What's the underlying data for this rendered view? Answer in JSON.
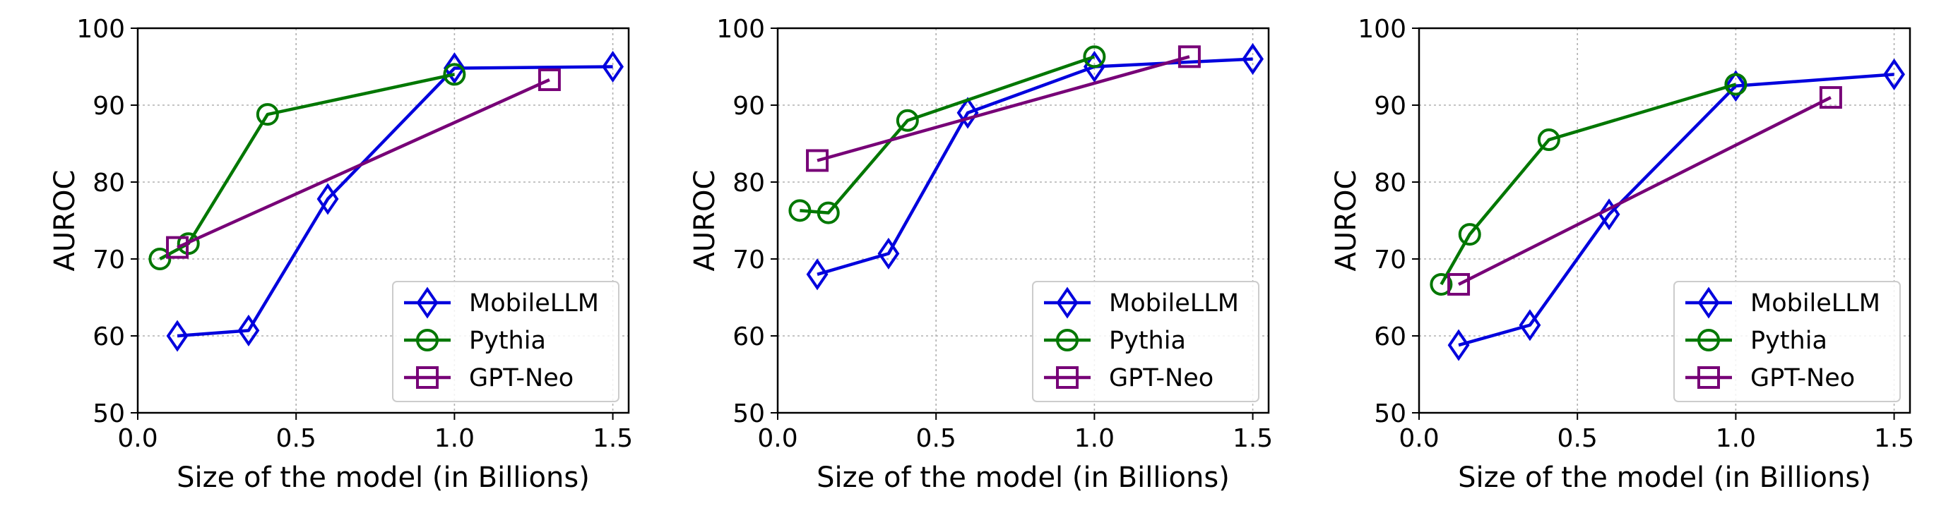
{
  "chart_data": [
    {
      "type": "line",
      "xlabel": "Size of the model (in Billions)",
      "ylabel": "AUROC",
      "xlim": [
        0.0,
        1.55
      ],
      "ylim": [
        50,
        100
      ],
      "xticks": [
        "0.0",
        "0.5",
        "1.0",
        "1.5"
      ],
      "yticks": [
        "50",
        "60",
        "70",
        "80",
        "90",
        "100"
      ],
      "grid": true,
      "legend_position": "lower-right",
      "series": [
        {
          "name": "MobileLLM",
          "color": "#0000dd",
          "marker": "thin-diamond",
          "x": [
            0.125,
            0.35,
            0.6,
            1.0,
            1.5
          ],
          "y": [
            60.0,
            60.7,
            77.8,
            94.8,
            95.0
          ]
        },
        {
          "name": "Pythia",
          "color": "#007700",
          "marker": "circle",
          "x": [
            0.07,
            0.16,
            0.41,
            1.0
          ],
          "y": [
            70.0,
            72.0,
            88.8,
            94.0
          ]
        },
        {
          "name": "GPT-Neo",
          "color": "#770077",
          "marker": "square",
          "x": [
            0.125,
            1.3
          ],
          "y": [
            71.5,
            93.3
          ]
        }
      ]
    },
    {
      "type": "line",
      "xlabel": "Size of the model (in Billions)",
      "ylabel": "AUROC",
      "xlim": [
        0.0,
        1.55
      ],
      "ylim": [
        50,
        100
      ],
      "xticks": [
        "0.0",
        "0.5",
        "1.0",
        "1.5"
      ],
      "yticks": [
        "50",
        "60",
        "70",
        "80",
        "90",
        "100"
      ],
      "grid": true,
      "legend_position": "lower-right",
      "series": [
        {
          "name": "MobileLLM",
          "color": "#0000dd",
          "marker": "thin-diamond",
          "x": [
            0.125,
            0.35,
            0.6,
            1.0,
            1.5
          ],
          "y": [
            68.0,
            70.7,
            89.0,
            95.0,
            96.0
          ]
        },
        {
          "name": "Pythia",
          "color": "#007700",
          "marker": "circle",
          "x": [
            0.07,
            0.16,
            0.41,
            1.0
          ],
          "y": [
            76.3,
            76.0,
            88.0,
            96.3
          ]
        },
        {
          "name": "GPT-Neo",
          "color": "#770077",
          "marker": "square",
          "x": [
            0.125,
            1.3
          ],
          "y": [
            82.8,
            96.3
          ]
        }
      ]
    },
    {
      "type": "line",
      "xlabel": "Size of the model (in Billions)",
      "ylabel": "AUROC",
      "xlim": [
        0.0,
        1.55
      ],
      "ylim": [
        50,
        100
      ],
      "xticks": [
        "0.0",
        "0.5",
        "1.0",
        "1.5"
      ],
      "yticks": [
        "50",
        "60",
        "70",
        "80",
        "90",
        "100"
      ],
      "grid": true,
      "legend_position": "lower-right",
      "series": [
        {
          "name": "MobileLLM",
          "color": "#0000dd",
          "marker": "thin-diamond",
          "x": [
            0.125,
            0.35,
            0.6,
            1.0,
            1.5
          ],
          "y": [
            58.8,
            61.4,
            75.8,
            92.5,
            94.0
          ]
        },
        {
          "name": "Pythia",
          "color": "#007700",
          "marker": "circle",
          "x": [
            0.07,
            0.16,
            0.41,
            1.0
          ],
          "y": [
            66.7,
            73.2,
            85.5,
            92.7
          ]
        },
        {
          "name": "GPT-Neo",
          "color": "#770077",
          "marker": "square",
          "x": [
            0.125,
            1.3
          ],
          "y": [
            66.7,
            91.0
          ]
        }
      ]
    }
  ]
}
